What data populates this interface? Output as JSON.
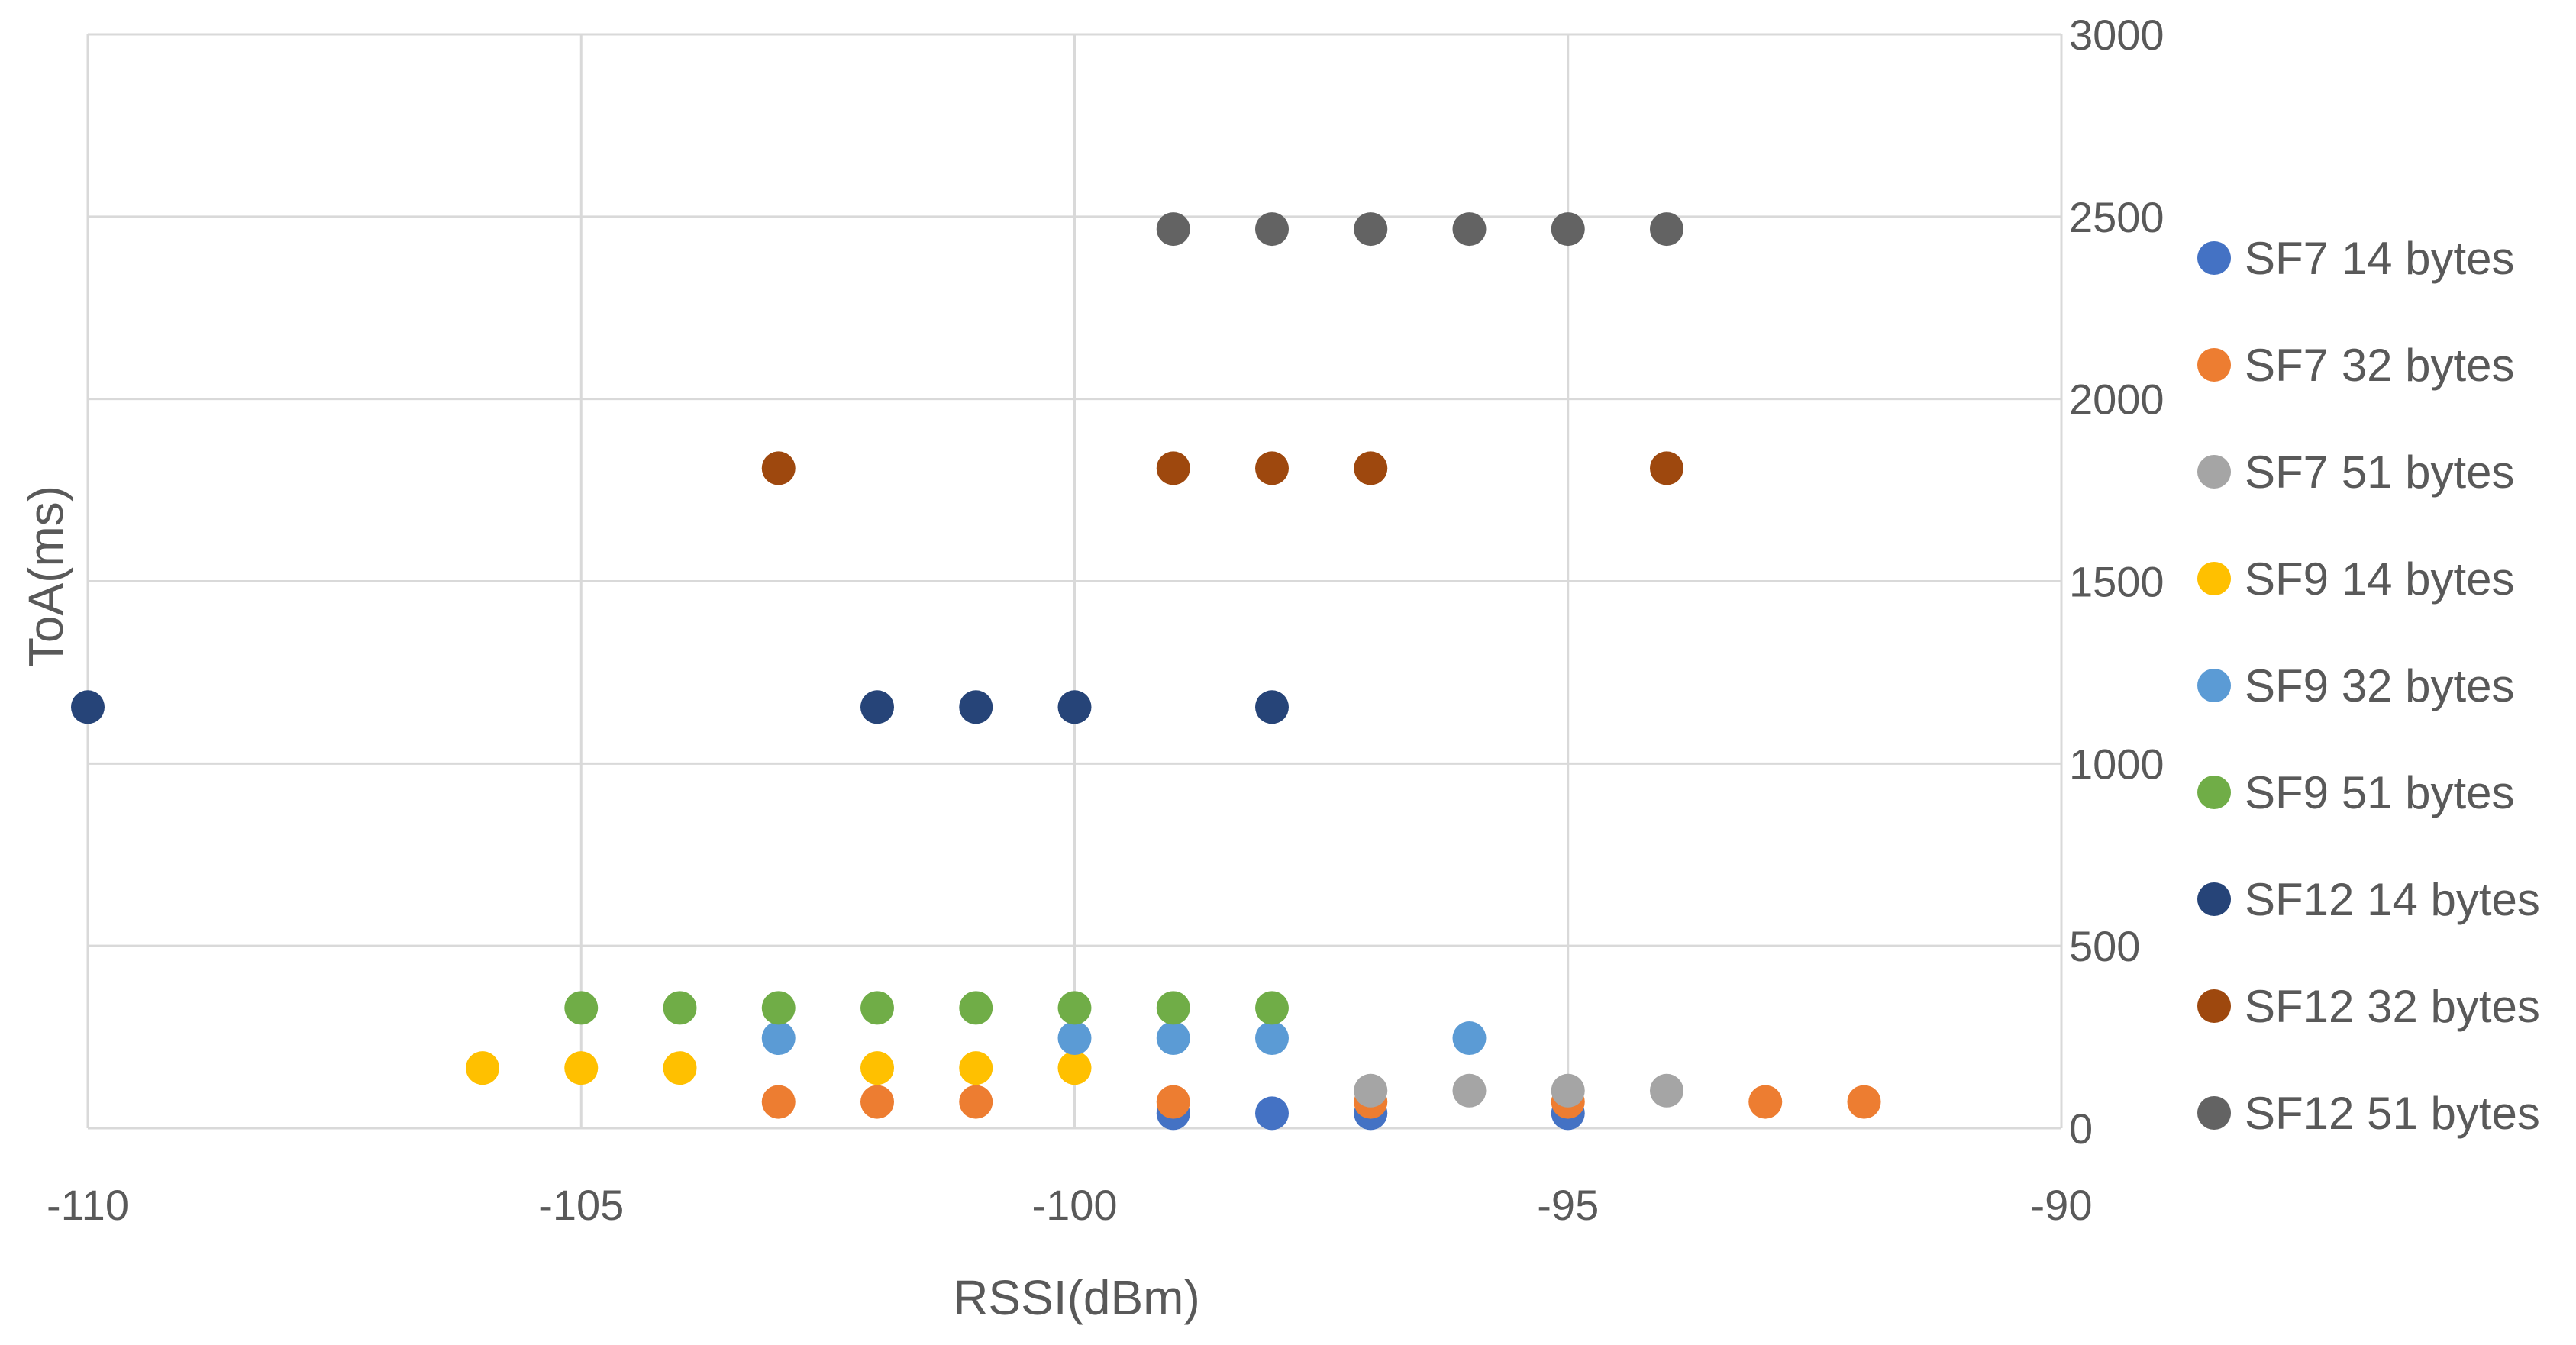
{
  "chart_data": {
    "type": "scatter",
    "title": "",
    "xlabel": "RSSI(dBm)",
    "ylabel": "ToA(ms)",
    "xlim": [
      -110,
      -90
    ],
    "ylim": [
      0,
      3000
    ],
    "xticks": [
      -110,
      -105,
      -100,
      -95,
      -90
    ],
    "yticks": [
      0,
      500,
      1000,
      1500,
      2000,
      2500,
      3000
    ],
    "xtick_labels": [
      "-110",
      "-105",
      "-100",
      "-95",
      "-90"
    ],
    "ytick_labels": [
      "0",
      "500",
      "1000",
      "1500",
      "2000",
      "2500",
      "3000"
    ],
    "grid": true,
    "legend_position": "right",
    "series": [
      {
        "name": "SF7 14 bytes",
        "color": "#4472c4",
        "points": [
          [
            -99,
            41
          ],
          [
            -98,
            41
          ],
          [
            -97,
            41
          ],
          [
            -95,
            41
          ]
        ]
      },
      {
        "name": "SF7 32 bytes",
        "color": "#ed7d31",
        "points": [
          [
            -103,
            72
          ],
          [
            -102,
            72
          ],
          [
            -101,
            72
          ],
          [
            -99,
            72
          ],
          [
            -97,
            72
          ],
          [
            -95,
            72
          ],
          [
            -93,
            72
          ],
          [
            -92,
            72
          ]
        ]
      },
      {
        "name": "SF7 51 bytes",
        "color": "#a5a5a5",
        "points": [
          [
            -97,
            103
          ],
          [
            -96,
            103
          ],
          [
            -95,
            103
          ],
          [
            -94,
            103
          ]
        ]
      },
      {
        "name": "SF9 14 bytes",
        "color": "#ffc000",
        "points": [
          [
            -106,
            165
          ],
          [
            -105,
            165
          ],
          [
            -104,
            165
          ],
          [
            -102,
            165
          ],
          [
            -101,
            165
          ],
          [
            -100,
            165
          ]
        ]
      },
      {
        "name": "SF9 32 bytes",
        "color": "#5b9bd5",
        "points": [
          [
            -103,
            247
          ],
          [
            -100,
            247
          ],
          [
            -99,
            247
          ],
          [
            -98,
            247
          ],
          [
            -96,
            247
          ]
        ]
      },
      {
        "name": "SF9 51 bytes",
        "color": "#70ad47",
        "points": [
          [
            -105,
            330
          ],
          [
            -104,
            330
          ],
          [
            -103,
            330
          ],
          [
            -102,
            330
          ],
          [
            -101,
            330
          ],
          [
            -100,
            330
          ],
          [
            -99,
            330
          ],
          [
            -98,
            330
          ]
        ]
      },
      {
        "name": "SF12 14 bytes",
        "color": "#264478",
        "points": [
          [
            -110,
            1155
          ],
          [
            -102,
            1155
          ],
          [
            -101,
            1155
          ],
          [
            -100,
            1155
          ],
          [
            -98,
            1155
          ]
        ]
      },
      {
        "name": "SF12 32 bytes",
        "color": "#9e480e",
        "points": [
          [
            -103,
            1810
          ],
          [
            -99,
            1810
          ],
          [
            -98,
            1810
          ],
          [
            -97,
            1810
          ],
          [
            -94,
            1810
          ]
        ]
      },
      {
        "name": "SF12 51 bytes",
        "color": "#636363",
        "points": [
          [
            -99,
            2466
          ],
          [
            -98,
            2466
          ],
          [
            -97,
            2466
          ],
          [
            -96,
            2466
          ],
          [
            -95,
            2466
          ],
          [
            -94,
            2466
          ]
        ]
      }
    ]
  }
}
